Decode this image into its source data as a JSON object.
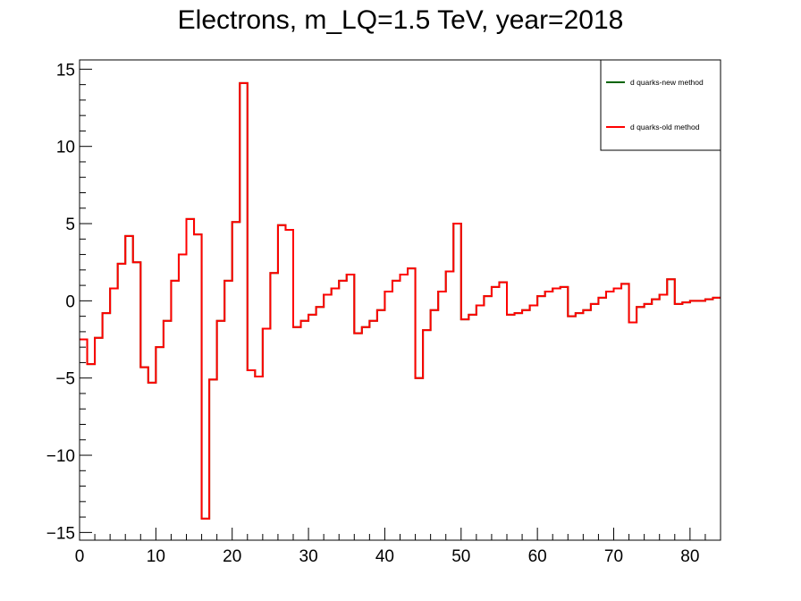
{
  "chart_data": {
    "type": "line",
    "title": "Electrons, m_LQ=1.5 TeV, year=2018",
    "xlabel": "",
    "ylabel": "",
    "xlim": [
      0,
      84
    ],
    "ylim": [
      -15.5,
      15.6
    ],
    "x_ticks": [
      0,
      10,
      20,
      30,
      40,
      50,
      60,
      70,
      80
    ],
    "x_tick_labels": [
      "0",
      "10",
      "20",
      "30",
      "40",
      "50",
      "60",
      "70",
      "80"
    ],
    "y_ticks": [
      -15,
      -10,
      -5,
      0,
      5,
      10,
      15
    ],
    "y_tick_labels": [
      "−15",
      "−10",
      "−5",
      "0",
      "5",
      "10",
      "15"
    ],
    "grid": false,
    "legend_position": "top-right",
    "bin_width": 1,
    "series": [
      {
        "name": "d quarks-new method",
        "color": "#006400",
        "values": [
          -2.5,
          -4.1,
          -2.4,
          -0.8,
          0.8,
          2.4,
          4.2,
          2.5,
          -4.3,
          -5.3,
          -3.0,
          -1.3,
          1.3,
          3.0,
          5.3,
          4.3,
          -14.1,
          -5.1,
          -1.3,
          1.3,
          5.1,
          14.1,
          -4.5,
          -4.9,
          -1.8,
          1.8,
          4.9,
          4.6,
          -1.7,
          -1.3,
          -0.9,
          -0.4,
          0.4,
          0.8,
          1.3,
          1.7,
          -2.1,
          -1.7,
          -1.3,
          -0.6,
          0.6,
          1.3,
          1.7,
          2.1,
          -5.0,
          -1.9,
          -0.6,
          0.6,
          1.9,
          5.0,
          -1.2,
          -0.9,
          -0.3,
          0.3,
          0.9,
          1.2,
          -0.9,
          -0.8,
          -0.6,
          -0.3,
          0.3,
          0.6,
          0.8,
          0.9,
          -1.0,
          -0.8,
          -0.6,
          -0.2,
          0.2,
          0.6,
          0.8,
          1.1,
          -1.4,
          -0.4,
          -0.2,
          0.1,
          0.4,
          1.4,
          -0.2,
          -0.1,
          0.0,
          0.0,
          0.1,
          0.2
        ]
      },
      {
        "name": "d quarks-old method",
        "color": "#ff0000",
        "values": [
          -2.5,
          -4.1,
          -2.4,
          -0.8,
          0.8,
          2.4,
          4.2,
          2.5,
          -4.3,
          -5.3,
          -3.0,
          -1.3,
          1.3,
          3.0,
          5.3,
          4.3,
          -14.1,
          -5.1,
          -1.3,
          1.3,
          5.1,
          14.1,
          -4.5,
          -4.9,
          -1.8,
          1.8,
          4.9,
          4.6,
          -1.7,
          -1.3,
          -0.9,
          -0.4,
          0.4,
          0.8,
          1.3,
          1.7,
          -2.1,
          -1.7,
          -1.3,
          -0.6,
          0.6,
          1.3,
          1.7,
          2.1,
          -5.0,
          -1.9,
          -0.6,
          0.6,
          1.9,
          5.0,
          -1.2,
          -0.9,
          -0.3,
          0.3,
          0.9,
          1.2,
          -0.9,
          -0.8,
          -0.6,
          -0.3,
          0.3,
          0.6,
          0.8,
          0.9,
          -1.0,
          -0.8,
          -0.6,
          -0.2,
          0.2,
          0.6,
          0.8,
          1.1,
          -1.4,
          -0.4,
          -0.2,
          0.1,
          0.4,
          1.4,
          -0.2,
          -0.1,
          0.0,
          0.0,
          0.1,
          0.2
        ]
      }
    ]
  }
}
